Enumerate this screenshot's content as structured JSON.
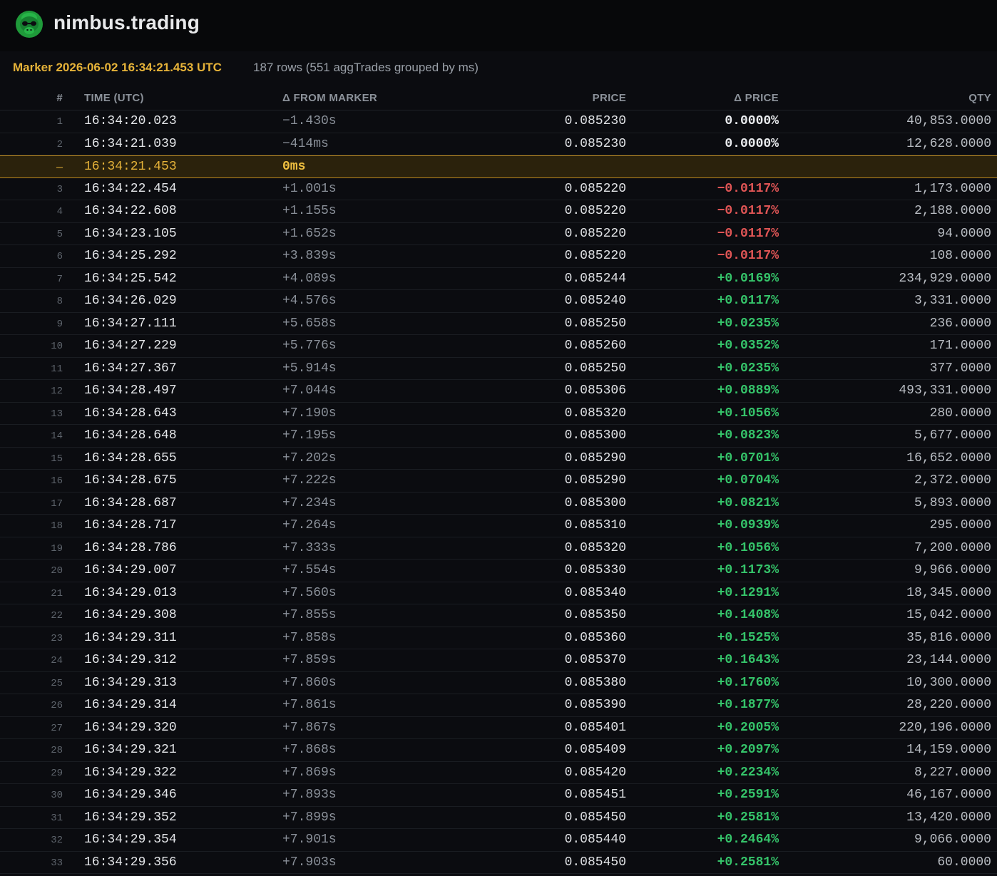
{
  "app": {
    "brand": "nimbus.trading",
    "logo_icon": "gorilla-logo-icon",
    "accent": "#e6b339",
    "positive": "#35c46a",
    "negative": "#e05555"
  },
  "info": {
    "marker": "Marker 2026-06-02 16:34:21.453 UTC",
    "rows_summary": "187 rows (551 aggTrades grouped by ms)"
  },
  "table": {
    "columns": [
      "#",
      "TIME (UTC)",
      "Δ FROM MARKER",
      "PRICE",
      "Δ PRICE",
      "QTY"
    ],
    "rows": [
      {
        "idx": "1",
        "time": "16:34:20.023",
        "delta": "−1.430s",
        "price": "0.085230",
        "dprice": "0.0000%",
        "qty": "40,853.0000",
        "kind": "zero"
      },
      {
        "idx": "2",
        "time": "16:34:21.039",
        "delta": "−414ms",
        "price": "0.085230",
        "dprice": "0.0000%",
        "qty": "12,628.0000",
        "kind": "zero"
      },
      {
        "idx": "—",
        "time": "16:34:21.453",
        "delta": "0ms",
        "price": "",
        "dprice": "",
        "qty": "",
        "kind": "marker"
      },
      {
        "idx": "3",
        "time": "16:34:22.454",
        "delta": "+1.001s",
        "price": "0.085220",
        "dprice": "−0.0117%",
        "qty": "1,173.0000",
        "kind": "neg"
      },
      {
        "idx": "4",
        "time": "16:34:22.608",
        "delta": "+1.155s",
        "price": "0.085220",
        "dprice": "−0.0117%",
        "qty": "2,188.0000",
        "kind": "neg"
      },
      {
        "idx": "5",
        "time": "16:34:23.105",
        "delta": "+1.652s",
        "price": "0.085220",
        "dprice": "−0.0117%",
        "qty": "94.0000",
        "kind": "neg"
      },
      {
        "idx": "6",
        "time": "16:34:25.292",
        "delta": "+3.839s",
        "price": "0.085220",
        "dprice": "−0.0117%",
        "qty": "108.0000",
        "kind": "neg"
      },
      {
        "idx": "7",
        "time": "16:34:25.542",
        "delta": "+4.089s",
        "price": "0.085244",
        "dprice": "+0.0169%",
        "qty": "234,929.0000",
        "kind": "pos"
      },
      {
        "idx": "8",
        "time": "16:34:26.029",
        "delta": "+4.576s",
        "price": "0.085240",
        "dprice": "+0.0117%",
        "qty": "3,331.0000",
        "kind": "pos"
      },
      {
        "idx": "9",
        "time": "16:34:27.111",
        "delta": "+5.658s",
        "price": "0.085250",
        "dprice": "+0.0235%",
        "qty": "236.0000",
        "kind": "pos"
      },
      {
        "idx": "10",
        "time": "16:34:27.229",
        "delta": "+5.776s",
        "price": "0.085260",
        "dprice": "+0.0352%",
        "qty": "171.0000",
        "kind": "pos"
      },
      {
        "idx": "11",
        "time": "16:34:27.367",
        "delta": "+5.914s",
        "price": "0.085250",
        "dprice": "+0.0235%",
        "qty": "377.0000",
        "kind": "pos"
      },
      {
        "idx": "12",
        "time": "16:34:28.497",
        "delta": "+7.044s",
        "price": "0.085306",
        "dprice": "+0.0889%",
        "qty": "493,331.0000",
        "kind": "pos"
      },
      {
        "idx": "13",
        "time": "16:34:28.643",
        "delta": "+7.190s",
        "price": "0.085320",
        "dprice": "+0.1056%",
        "qty": "280.0000",
        "kind": "pos"
      },
      {
        "idx": "14",
        "time": "16:34:28.648",
        "delta": "+7.195s",
        "price": "0.085300",
        "dprice": "+0.0823%",
        "qty": "5,677.0000",
        "kind": "pos"
      },
      {
        "idx": "15",
        "time": "16:34:28.655",
        "delta": "+7.202s",
        "price": "0.085290",
        "dprice": "+0.0701%",
        "qty": "16,652.0000",
        "kind": "pos"
      },
      {
        "idx": "16",
        "time": "16:34:28.675",
        "delta": "+7.222s",
        "price": "0.085290",
        "dprice": "+0.0704%",
        "qty": "2,372.0000",
        "kind": "pos"
      },
      {
        "idx": "17",
        "time": "16:34:28.687",
        "delta": "+7.234s",
        "price": "0.085300",
        "dprice": "+0.0821%",
        "qty": "5,893.0000",
        "kind": "pos"
      },
      {
        "idx": "18",
        "time": "16:34:28.717",
        "delta": "+7.264s",
        "price": "0.085310",
        "dprice": "+0.0939%",
        "qty": "295.0000",
        "kind": "pos"
      },
      {
        "idx": "19",
        "time": "16:34:28.786",
        "delta": "+7.333s",
        "price": "0.085320",
        "dprice": "+0.1056%",
        "qty": "7,200.0000",
        "kind": "pos"
      },
      {
        "idx": "20",
        "time": "16:34:29.007",
        "delta": "+7.554s",
        "price": "0.085330",
        "dprice": "+0.1173%",
        "qty": "9,966.0000",
        "kind": "pos"
      },
      {
        "idx": "21",
        "time": "16:34:29.013",
        "delta": "+7.560s",
        "price": "0.085340",
        "dprice": "+0.1291%",
        "qty": "18,345.0000",
        "kind": "pos"
      },
      {
        "idx": "22",
        "time": "16:34:29.308",
        "delta": "+7.855s",
        "price": "0.085350",
        "dprice": "+0.1408%",
        "qty": "15,042.0000",
        "kind": "pos"
      },
      {
        "idx": "23",
        "time": "16:34:29.311",
        "delta": "+7.858s",
        "price": "0.085360",
        "dprice": "+0.1525%",
        "qty": "35,816.0000",
        "kind": "pos"
      },
      {
        "idx": "24",
        "time": "16:34:29.312",
        "delta": "+7.859s",
        "price": "0.085370",
        "dprice": "+0.1643%",
        "qty": "23,144.0000",
        "kind": "pos"
      },
      {
        "idx": "25",
        "time": "16:34:29.313",
        "delta": "+7.860s",
        "price": "0.085380",
        "dprice": "+0.1760%",
        "qty": "10,300.0000",
        "kind": "pos"
      },
      {
        "idx": "26",
        "time": "16:34:29.314",
        "delta": "+7.861s",
        "price": "0.085390",
        "dprice": "+0.1877%",
        "qty": "28,220.0000",
        "kind": "pos"
      },
      {
        "idx": "27",
        "time": "16:34:29.320",
        "delta": "+7.867s",
        "price": "0.085401",
        "dprice": "+0.2005%",
        "qty": "220,196.0000",
        "kind": "pos"
      },
      {
        "idx": "28",
        "time": "16:34:29.321",
        "delta": "+7.868s",
        "price": "0.085409",
        "dprice": "+0.2097%",
        "qty": "14,159.0000",
        "kind": "pos"
      },
      {
        "idx": "29",
        "time": "16:34:29.322",
        "delta": "+7.869s",
        "price": "0.085420",
        "dprice": "+0.2234%",
        "qty": "8,227.0000",
        "kind": "pos"
      },
      {
        "idx": "30",
        "time": "16:34:29.346",
        "delta": "+7.893s",
        "price": "0.085451",
        "dprice": "+0.2591%",
        "qty": "46,167.0000",
        "kind": "pos"
      },
      {
        "idx": "31",
        "time": "16:34:29.352",
        "delta": "+7.899s",
        "price": "0.085450",
        "dprice": "+0.2581%",
        "qty": "13,420.0000",
        "kind": "pos"
      },
      {
        "idx": "32",
        "time": "16:34:29.354",
        "delta": "+7.901s",
        "price": "0.085440",
        "dprice": "+0.2464%",
        "qty": "9,066.0000",
        "kind": "pos"
      },
      {
        "idx": "33",
        "time": "16:34:29.356",
        "delta": "+7.903s",
        "price": "0.085450",
        "dprice": "+0.2581%",
        "qty": "60.0000",
        "kind": "pos"
      }
    ]
  }
}
